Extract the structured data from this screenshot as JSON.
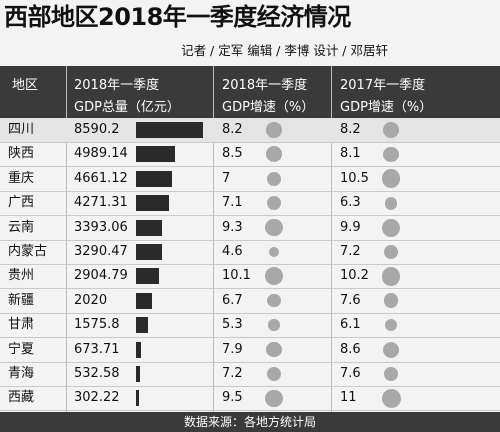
{
  "title": "西部地区2018年一季度经济情况",
  "credits": "记者 / 定军 编辑 / 李博 设计 / 邓居轩",
  "header": {
    "region": "地区",
    "gdp_line1": "2018年一季度",
    "gdp_line2": "GDP总量（亿元）",
    "growth2018_line1": "2018年一季度",
    "growth2018_line2": "GDP增速（%）",
    "growth2017_line1": "2017年一季度",
    "growth2017_line2": "GDP增速（%）"
  },
  "footer": "数据来源：各地方统计局",
  "chart_data": {
    "type": "table",
    "columns": [
      "地区",
      "2018年一季度 GDP总量（亿元）",
      "2018年一季度 GDP增速（%）",
      "2017年一季度 GDP增速（%）"
    ],
    "rows": [
      {
        "region": "四川",
        "gdp": "8590.2",
        "g2018": "8.2",
        "g2017": "8.2"
      },
      {
        "region": "陕西",
        "gdp": "4989.14",
        "g2018": "8.5",
        "g2017": "8.1"
      },
      {
        "region": "重庆",
        "gdp": "4661.12",
        "g2018": "7",
        "g2017": "10.5"
      },
      {
        "region": "广西",
        "gdp": "4271.31",
        "g2018": "7.1",
        "g2017": "6.3"
      },
      {
        "region": "云南",
        "gdp": "3393.06",
        "g2018": "9.3",
        "g2017": "9.9"
      },
      {
        "region": "内蒙古",
        "gdp": "3290.47",
        "g2018": "4.6",
        "g2017": "7.2"
      },
      {
        "region": "贵州",
        "gdp": "2904.79",
        "g2018": "10.1",
        "g2017": "10.2"
      },
      {
        "region": "新疆",
        "gdp": "2020",
        "g2018": "6.7",
        "g2017": "7.6"
      },
      {
        "region": "甘肃",
        "gdp": "1575.8",
        "g2018": "5.3",
        "g2017": "6.1"
      },
      {
        "region": "宁夏",
        "gdp": "673.71",
        "g2018": "7.9",
        "g2017": "8.6"
      },
      {
        "region": "青海",
        "gdp": "532.58",
        "g2018": "7.2",
        "g2017": "7.6"
      },
      {
        "region": "西藏",
        "gdp": "302.22",
        "g2018": "9.5",
        "g2017": "11"
      }
    ]
  }
}
